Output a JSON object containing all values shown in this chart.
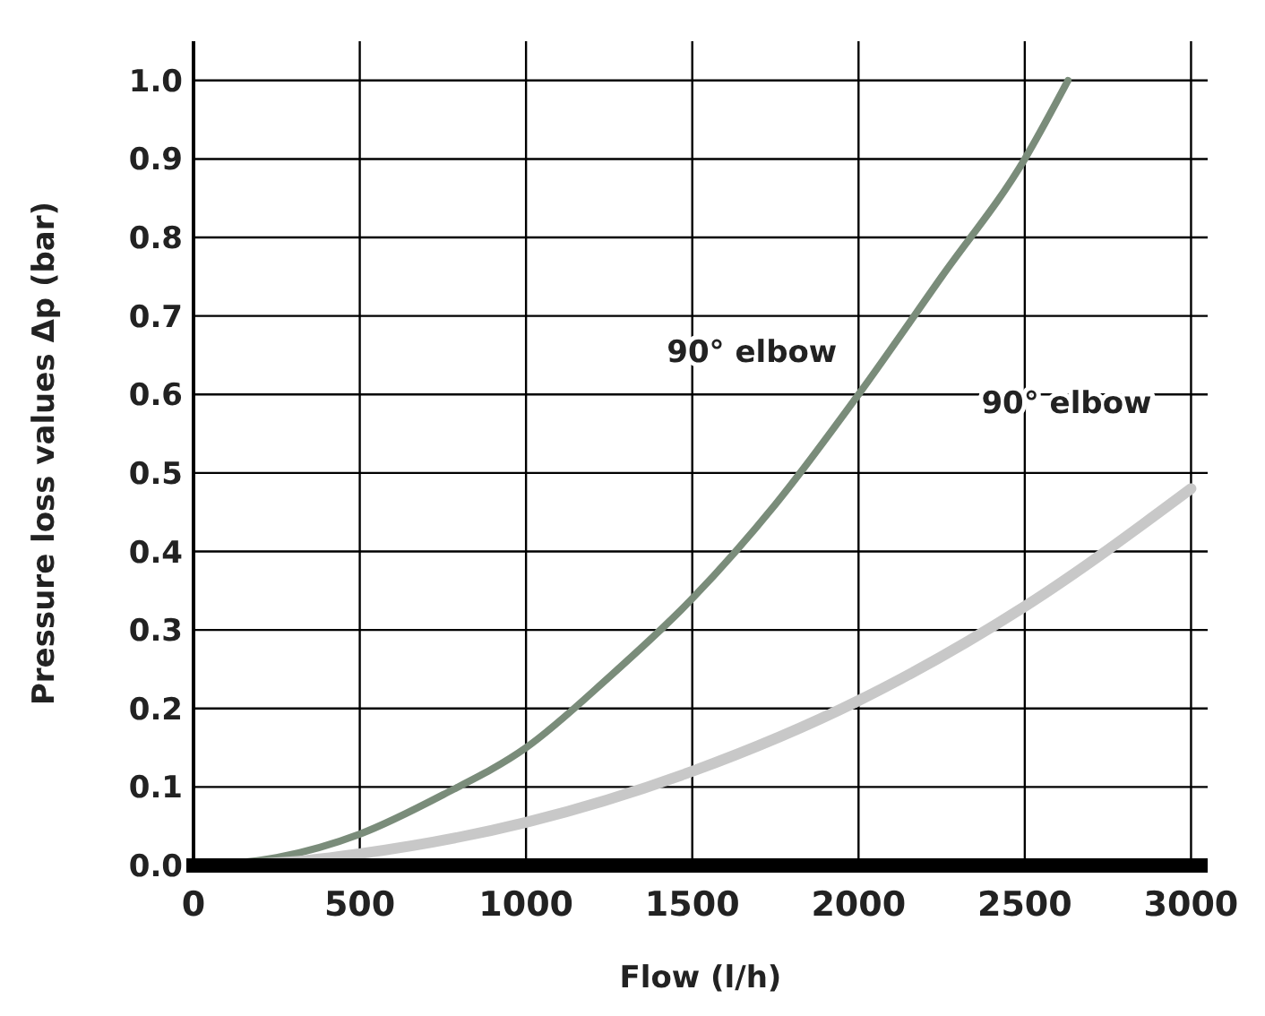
{
  "chart_data": {
    "type": "line",
    "xlabel": "Flow (l/h)",
    "ylabel": "Pressure loss values Δp (bar)",
    "xlim": [
      0,
      3050
    ],
    "ylim": [
      0,
      1.05
    ],
    "xticks": [
      0,
      500,
      1000,
      1500,
      2000,
      2500,
      3000
    ],
    "yticks": [
      {
        "value": 0,
        "label": "0.0"
      },
      0.1,
      0.2,
      0.3,
      0.4,
      0.5,
      0.6,
      0.7,
      0.8,
      0.9,
      {
        "value": 1,
        "label": "1.0"
      }
    ],
    "grid": true,
    "line_style": "solid",
    "series": [
      {
        "name": "90° elbow",
        "color": "#7a8c7a",
        "x": [
          0,
          250,
          500,
          750,
          1000,
          1250,
          1500,
          1750,
          2000,
          2250,
          2500,
          2630
        ],
        "values": [
          0,
          0.01,
          0.04,
          0.09,
          0.15,
          0.24,
          0.34,
          0.46,
          0.6,
          0.75,
          0.9,
          1.0
        ]
      },
      {
        "name": "90° elbow",
        "color": "#c8c8c8",
        "x": [
          0,
          300,
          500,
          1000,
          1500,
          2000,
          2500,
          3000
        ],
        "values": [
          0,
          0.005,
          0.015,
          0.055,
          0.12,
          0.21,
          0.33,
          0.48
        ]
      }
    ]
  }
}
